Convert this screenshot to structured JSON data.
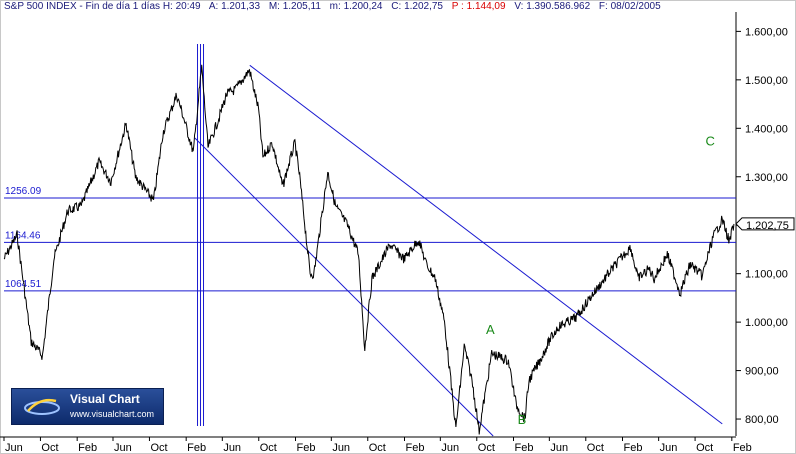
{
  "header": {
    "symbol": "S&P 500 INDEX",
    "period": "Fin de día 1 días",
    "h_label": "H:",
    "h_value": "20:49",
    "a_label": "A:",
    "a_value": "1.201,33",
    "m_label": "M:",
    "m_value": "1.205,11",
    "min_label": "m:",
    "min_value": "1.200,24",
    "c_label": "C:",
    "c_value": "1.202,75",
    "p_label": "P :",
    "p_value": "1.144,09",
    "v_label": "V:",
    "v_value": "1.390.586.962",
    "f_label": "F:",
    "f_value": "08/02/2005"
  },
  "logo": {
    "name": "Visual Chart",
    "url": "www.visualchart.com"
  },
  "colors": {
    "price": "#000000",
    "lines": "#1a1ad0",
    "annotation": "#1a8a1a",
    "axis": "#000000",
    "frame": "#c8c8c8"
  },
  "chart_data": {
    "type": "line",
    "ylim": [
      765,
      1640
    ],
    "y_ticks": [
      800,
      900,
      1000,
      1100,
      1200,
      1300,
      1400,
      1500,
      1600
    ],
    "y_tick_labels": [
      "800,00",
      "900,00",
      "1.000,00",
      "1.100,00",
      "1.200,00",
      "1.300,00",
      "1.400,00",
      "1.500,00",
      "1.600,00"
    ],
    "x_tick_labels": [
      "Jun",
      "Oct",
      "Feb",
      "Jun",
      "Oct",
      "Feb",
      "Jun",
      "Oct",
      "Feb",
      "Jun",
      "Oct",
      "Feb",
      "Jun",
      "Oct",
      "Feb",
      "Jun",
      "Oct",
      "Feb",
      "Jun",
      "Oct",
      "Feb"
    ],
    "x_period": {
      "start": "1998-06",
      "end": "2005-02"
    },
    "last_value": "1.202,75",
    "series": [
      {
        "points": [
          [
            "1998-06-01",
            1130
          ],
          [
            "1998-07-15",
            1180
          ],
          [
            "1998-08-31",
            960
          ],
          [
            "1998-10-08",
            930
          ],
          [
            "1998-11-15",
            1130
          ],
          [
            "1998-12-31",
            1229
          ],
          [
            "1999-02-15",
            1240
          ],
          [
            "1999-04-15",
            1330
          ],
          [
            "1999-05-25",
            1290
          ],
          [
            "1999-07-15",
            1410
          ],
          [
            "1999-08-15",
            1300
          ],
          [
            "1999-10-15",
            1250
          ],
          [
            "1999-11-15",
            1390
          ],
          [
            "1999-12-31",
            1469
          ],
          [
            "2000-01-15",
            1440
          ],
          [
            "2000-02-25",
            1350
          ],
          [
            "2000-03-24",
            1527
          ],
          [
            "2000-04-14",
            1360
          ],
          [
            "2000-05-20",
            1420
          ],
          [
            "2000-06-15",
            1470
          ],
          [
            "2000-07-15",
            1480
          ],
          [
            "2000-08-31",
            1520
          ],
          [
            "2000-09-30",
            1440
          ],
          [
            "2000-10-15",
            1340
          ],
          [
            "2000-11-15",
            1370
          ],
          [
            "2000-12-20",
            1280
          ],
          [
            "2001-01-30",
            1370
          ],
          [
            "2001-02-15",
            1300
          ],
          [
            "2001-03-22",
            1100
          ],
          [
            "2001-04-04",
            1100
          ],
          [
            "2001-05-20",
            1310
          ],
          [
            "2001-06-15",
            1240
          ],
          [
            "2001-07-25",
            1200
          ],
          [
            "2001-08-31",
            1140
          ],
          [
            "2001-09-21",
            945
          ],
          [
            "2001-10-15",
            1090
          ],
          [
            "2001-12-15",
            1160
          ],
          [
            "2002-01-31",
            1130
          ],
          [
            "2002-03-20",
            1170
          ],
          [
            "2002-04-15",
            1120
          ],
          [
            "2002-05-15",
            1090
          ],
          [
            "2002-06-15",
            1000
          ],
          [
            "2002-07-23",
            780
          ],
          [
            "2002-08-20",
            950
          ],
          [
            "2002-09-15",
            880
          ],
          [
            "2002-10-09",
            776
          ],
          [
            "2002-11-20",
            935
          ],
          [
            "2003-01-15",
            920
          ],
          [
            "2003-02-10",
            830
          ],
          [
            "2003-03-11",
            800
          ],
          [
            "2003-03-25",
            880
          ],
          [
            "2003-04-30",
            920
          ],
          [
            "2003-05-31",
            960
          ],
          [
            "2003-06-30",
            990
          ],
          [
            "2003-08-31",
            1010
          ],
          [
            "2003-10-15",
            1050
          ],
          [
            "2003-12-31",
            1112
          ],
          [
            "2004-01-31",
            1135
          ],
          [
            "2004-02-28",
            1155
          ],
          [
            "2004-03-24",
            1090
          ],
          [
            "2004-04-30",
            1110
          ],
          [
            "2004-05-17",
            1090
          ],
          [
            "2004-06-30",
            1140
          ],
          [
            "2004-08-12",
            1060
          ],
          [
            "2004-09-15",
            1120
          ],
          [
            "2004-10-25",
            1095
          ],
          [
            "2004-11-30",
            1175
          ],
          [
            "2004-12-31",
            1212
          ],
          [
            "2005-01-24",
            1165
          ],
          [
            "2005-02-08",
            1202.75
          ]
        ]
      }
    ],
    "horizontal_lines": [
      {
        "label": "1256.09",
        "value": 1256.09
      },
      {
        "label": "1164.46",
        "value": 1164.46
      },
      {
        "label": "1064.51",
        "value": 1064.51
      }
    ],
    "trend_lines": [
      {
        "from": [
          "2000-09-01",
          1530
        ],
        "to": [
          "2004-12-31",
          790
        ]
      },
      {
        "from": [
          "2000-03-01",
          1380
        ],
        "to": [
          "2002-11-25",
          765
        ]
      }
    ],
    "wave_labels": [
      {
        "text": "A",
        "x": "2002-11-01",
        "y": 975
      },
      {
        "text": "B",
        "x": "2003-02-15",
        "y": 790
      },
      {
        "text": "C",
        "x": "2004-11-05",
        "y": 1365
      }
    ],
    "vertical_marker_date": "2000-03-20",
    "grid": false
  }
}
